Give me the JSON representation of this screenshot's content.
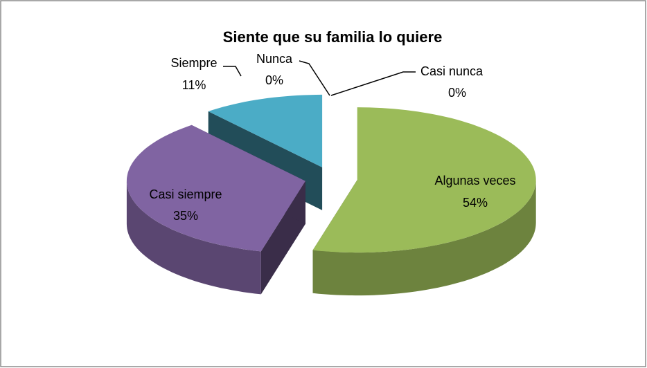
{
  "chart_data": {
    "type": "pie3d",
    "title": "Siente que su familia lo quiere",
    "categories": [
      "Nunca",
      "Casi nunca",
      "Algunas veces",
      "Casi siempre",
      "Siempre"
    ],
    "values": [
      0,
      0,
      54,
      35,
      11
    ],
    "value_labels": [
      "0%",
      "0%",
      "54%",
      "35%",
      "11%"
    ],
    "colors": [
      "#4f81bd",
      "#c0504d",
      "#9bbb59",
      "#8064a2",
      "#4bacc6"
    ]
  }
}
